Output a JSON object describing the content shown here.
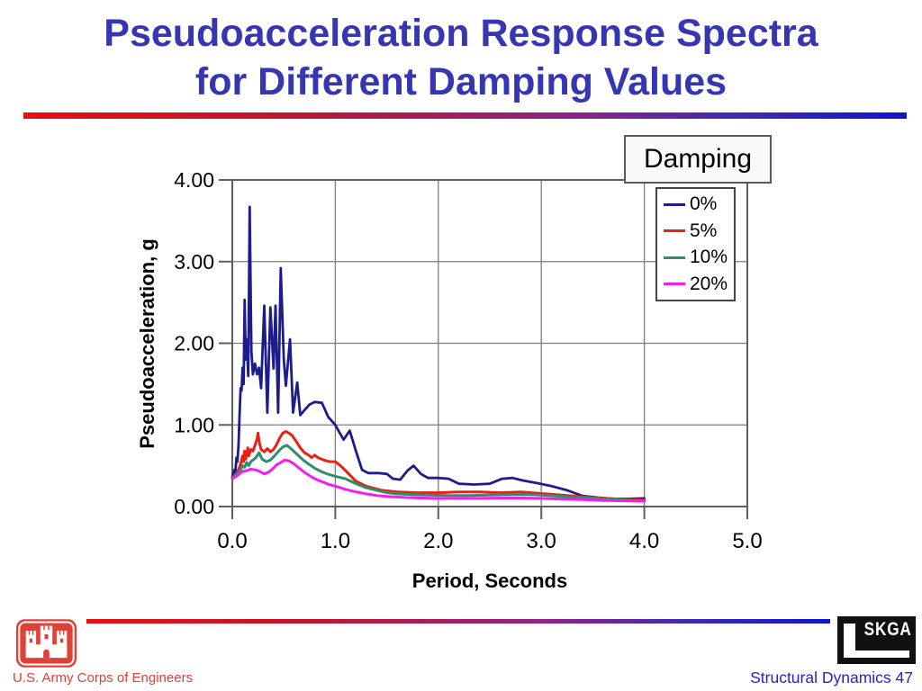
{
  "slide": {
    "title_line1": "Pseudoacceleration Response Spectra",
    "title_line2": "for Different Damping Values"
  },
  "footer": {
    "org": "U.S. Army Corps of Engineers",
    "logo_text": "SKGA",
    "credit": "Structural Dynamics 47"
  },
  "colors": {
    "title_blue": "#3636b2",
    "divider_red": "#e51010",
    "divider_blue": "#1113cf",
    "army_red": "#df4038",
    "credit_blue": "#2424cc"
  },
  "chart_data": {
    "type": "line",
    "title": "",
    "xlabel": "Period, Seconds",
    "ylabel": "Pseudoacceleration, g",
    "xlim": [
      0,
      5
    ],
    "ylim": [
      0,
      4
    ],
    "x_ticks": [
      "0.0",
      "1.0",
      "2.0",
      "3.0",
      "4.0",
      "5.0"
    ],
    "y_ticks": [
      "0.00",
      "1.00",
      "2.00",
      "3.00",
      "4.00"
    ],
    "grid": true,
    "legend_title": "Damping",
    "legend_position": "top-right",
    "series": [
      {
        "name": "0%",
        "color": "#1c1c8c",
        "points": [
          [
            0,
            0.36
          ],
          [
            0.02,
            0.45
          ],
          [
            0.03,
            0.42
          ],
          [
            0.04,
            0.6
          ],
          [
            0.05,
            0.55
          ],
          [
            0.06,
            0.75
          ],
          [
            0.07,
            1.1
          ],
          [
            0.08,
            1.45
          ],
          [
            0.09,
            1.42
          ],
          [
            0.1,
            1.7
          ],
          [
            0.11,
            1.5
          ],
          [
            0.12,
            2.53
          ],
          [
            0.13,
            1.8
          ],
          [
            0.14,
            2.05
          ],
          [
            0.155,
            1.6
          ],
          [
            0.169,
            3.67
          ],
          [
            0.185,
            1.9
          ],
          [
            0.2,
            1.62
          ],
          [
            0.22,
            1.75
          ],
          [
            0.24,
            1.62
          ],
          [
            0.26,
            1.7
          ],
          [
            0.28,
            1.45
          ],
          [
            0.31,
            2.46
          ],
          [
            0.34,
            1.15
          ],
          [
            0.37,
            2.44
          ],
          [
            0.4,
            1.69
          ],
          [
            0.42,
            2.46
          ],
          [
            0.445,
            1.15
          ],
          [
            0.47,
            2.92
          ],
          [
            0.5,
            1.8
          ],
          [
            0.52,
            1.48
          ],
          [
            0.56,
            2.05
          ],
          [
            0.59,
            1.15
          ],
          [
            0.63,
            1.52
          ],
          [
            0.66,
            1.12
          ],
          [
            0.7,
            1.18
          ],
          [
            0.75,
            1.25
          ],
          [
            0.8,
            1.28
          ],
          [
            0.87,
            1.27
          ],
          [
            0.93,
            1.1
          ],
          [
            1.0,
            1.0
          ],
          [
            1.03,
            0.93
          ],
          [
            1.08,
            0.82
          ],
          [
            1.14,
            0.93
          ],
          [
            1.2,
            0.68
          ],
          [
            1.26,
            0.45
          ],
          [
            1.32,
            0.41
          ],
          [
            1.42,
            0.41
          ],
          [
            1.5,
            0.4
          ],
          [
            1.56,
            0.34
          ],
          [
            1.63,
            0.33
          ],
          [
            1.7,
            0.44
          ],
          [
            1.76,
            0.5
          ],
          [
            1.83,
            0.4
          ],
          [
            1.9,
            0.35
          ],
          [
            2.0,
            0.35
          ],
          [
            2.1,
            0.34
          ],
          [
            2.2,
            0.28
          ],
          [
            2.35,
            0.27
          ],
          [
            2.5,
            0.28
          ],
          [
            2.62,
            0.34
          ],
          [
            2.72,
            0.35
          ],
          [
            2.82,
            0.32
          ],
          [
            2.95,
            0.29
          ],
          [
            3.1,
            0.25
          ],
          [
            3.25,
            0.2
          ],
          [
            3.4,
            0.13
          ],
          [
            3.55,
            0.11
          ],
          [
            3.7,
            0.095
          ],
          [
            3.85,
            0.095
          ],
          [
            4.0,
            0.1
          ]
        ]
      },
      {
        "name": "5%",
        "color": "#e82015",
        "points": [
          [
            0,
            0.35
          ],
          [
            0.04,
            0.4
          ],
          [
            0.06,
            0.45
          ],
          [
            0.08,
            0.52
          ],
          [
            0.1,
            0.62
          ],
          [
            0.11,
            0.55
          ],
          [
            0.12,
            0.68
          ],
          [
            0.13,
            0.58
          ],
          [
            0.15,
            0.72
          ],
          [
            0.16,
            0.62
          ],
          [
            0.18,
            0.7
          ],
          [
            0.2,
            0.68
          ],
          [
            0.22,
            0.75
          ],
          [
            0.24,
            0.83
          ],
          [
            0.25,
            0.9
          ],
          [
            0.26,
            0.8
          ],
          [
            0.28,
            0.7
          ],
          [
            0.31,
            0.67
          ],
          [
            0.34,
            0.71
          ],
          [
            0.37,
            0.67
          ],
          [
            0.4,
            0.7
          ],
          [
            0.43,
            0.76
          ],
          [
            0.46,
            0.84
          ],
          [
            0.49,
            0.9
          ],
          [
            0.52,
            0.92
          ],
          [
            0.55,
            0.9
          ],
          [
            0.58,
            0.87
          ],
          [
            0.62,
            0.8
          ],
          [
            0.66,
            0.72
          ],
          [
            0.7,
            0.66
          ],
          [
            0.74,
            0.63
          ],
          [
            0.77,
            0.6
          ],
          [
            0.8,
            0.63
          ],
          [
            0.83,
            0.6
          ],
          [
            0.87,
            0.58
          ],
          [
            0.91,
            0.56
          ],
          [
            0.95,
            0.55
          ],
          [
            1.0,
            0.55
          ],
          [
            1.05,
            0.5
          ],
          [
            1.1,
            0.44
          ],
          [
            1.2,
            0.31
          ],
          [
            1.3,
            0.25
          ],
          [
            1.45,
            0.2
          ],
          [
            1.6,
            0.18
          ],
          [
            1.8,
            0.17
          ],
          [
            2.0,
            0.17
          ],
          [
            2.2,
            0.18
          ],
          [
            2.4,
            0.18
          ],
          [
            2.6,
            0.17
          ],
          [
            2.8,
            0.18
          ],
          [
            3.0,
            0.16
          ],
          [
            3.2,
            0.14
          ],
          [
            3.4,
            0.12
          ],
          [
            3.6,
            0.1
          ],
          [
            3.8,
            0.09
          ],
          [
            4.0,
            0.08
          ]
        ]
      },
      {
        "name": "10%",
        "color": "#2f8e6b",
        "points": [
          [
            0,
            0.35
          ],
          [
            0.05,
            0.4
          ],
          [
            0.08,
            0.45
          ],
          [
            0.1,
            0.5
          ],
          [
            0.12,
            0.48
          ],
          [
            0.14,
            0.54
          ],
          [
            0.16,
            0.5
          ],
          [
            0.18,
            0.55
          ],
          [
            0.2,
            0.57
          ],
          [
            0.23,
            0.6
          ],
          [
            0.26,
            0.66
          ],
          [
            0.29,
            0.58
          ],
          [
            0.33,
            0.55
          ],
          [
            0.37,
            0.57
          ],
          [
            0.41,
            0.62
          ],
          [
            0.45,
            0.68
          ],
          [
            0.49,
            0.73
          ],
          [
            0.53,
            0.75
          ],
          [
            0.57,
            0.71
          ],
          [
            0.62,
            0.65
          ],
          [
            0.68,
            0.58
          ],
          [
            0.74,
            0.52
          ],
          [
            0.8,
            0.47
          ],
          [
            0.86,
            0.43
          ],
          [
            0.92,
            0.4
          ],
          [
            1.0,
            0.37
          ],
          [
            1.1,
            0.34
          ],
          [
            1.2,
            0.28
          ],
          [
            1.3,
            0.23
          ],
          [
            1.4,
            0.2
          ],
          [
            1.5,
            0.17
          ],
          [
            1.6,
            0.155
          ],
          [
            1.75,
            0.145
          ],
          [
            1.9,
            0.14
          ],
          [
            2.1,
            0.135
          ],
          [
            2.3,
            0.135
          ],
          [
            2.5,
            0.14
          ],
          [
            2.7,
            0.145
          ],
          [
            2.9,
            0.145
          ],
          [
            3.0,
            0.14
          ],
          [
            3.2,
            0.125
          ],
          [
            3.4,
            0.11
          ],
          [
            3.6,
            0.095
          ],
          [
            3.8,
            0.08
          ],
          [
            4.0,
            0.07
          ]
        ]
      },
      {
        "name": "20%",
        "color": "#f31df3",
        "points": [
          [
            0,
            0.34
          ],
          [
            0.05,
            0.38
          ],
          [
            0.1,
            0.43
          ],
          [
            0.14,
            0.44
          ],
          [
            0.18,
            0.46
          ],
          [
            0.22,
            0.45
          ],
          [
            0.25,
            0.44
          ],
          [
            0.28,
            0.42
          ],
          [
            0.31,
            0.4
          ],
          [
            0.35,
            0.42
          ],
          [
            0.39,
            0.46
          ],
          [
            0.43,
            0.51
          ],
          [
            0.47,
            0.54
          ],
          [
            0.51,
            0.57
          ],
          [
            0.55,
            0.56
          ],
          [
            0.59,
            0.53
          ],
          [
            0.64,
            0.48
          ],
          [
            0.7,
            0.42
          ],
          [
            0.76,
            0.37
          ],
          [
            0.82,
            0.33
          ],
          [
            0.88,
            0.3
          ],
          [
            0.94,
            0.27
          ],
          [
            1.0,
            0.25
          ],
          [
            1.1,
            0.21
          ],
          [
            1.2,
            0.18
          ],
          [
            1.3,
            0.155
          ],
          [
            1.4,
            0.135
          ],
          [
            1.55,
            0.12
          ],
          [
            1.7,
            0.11
          ],
          [
            1.85,
            0.105
          ],
          [
            2.0,
            0.1
          ],
          [
            2.2,
            0.1
          ],
          [
            2.4,
            0.1
          ],
          [
            2.6,
            0.105
          ],
          [
            2.8,
            0.105
          ],
          [
            3.0,
            0.1
          ],
          [
            3.2,
            0.09
          ],
          [
            3.4,
            0.085
          ],
          [
            3.6,
            0.075
          ],
          [
            3.8,
            0.07
          ],
          [
            4.0,
            0.065
          ]
        ]
      }
    ]
  }
}
